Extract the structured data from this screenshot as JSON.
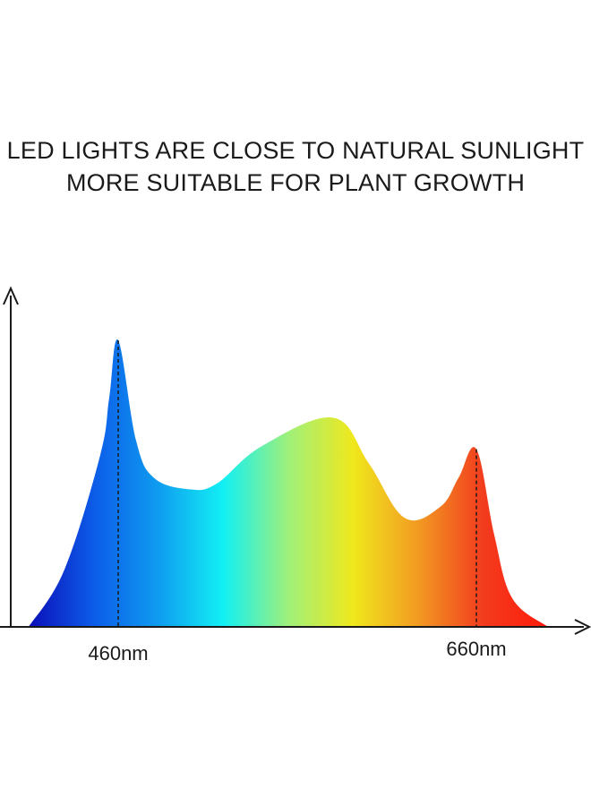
{
  "header": {
    "title_line1": "LED LIGHTS ARE CLOSE TO NATURAL SUNLIGHT",
    "title_line2": "MORE SUITABLE FOR PLANT GROWTH"
  },
  "chart_data": {
    "type": "area",
    "title": "LED LIGHTS ARE CLOSE TO NATURAL SUNLIGHT MORE SUITABLE FOR PLANT GROWTH",
    "xlabel": "",
    "ylabel": "",
    "x_unit": "nm",
    "grid": false,
    "legend": "none",
    "series": [
      {
        "x": [
          410,
          430,
          450,
          455,
          460,
          470,
          480,
          500,
          515,
          540,
          580,
          600,
          620,
          640,
          650,
          660,
          670,
          680,
          700
        ],
        "values": [
          0,
          0.2,
          0.6,
          0.8,
          1.0,
          0.65,
          0.52,
          0.48,
          0.5,
          0.63,
          0.73,
          0.57,
          0.38,
          0.42,
          0.52,
          0.62,
          0.32,
          0.1,
          0
        ]
      }
    ],
    "marked_wavelengths": [
      {
        "value": 460,
        "label": "460nm"
      },
      {
        "value": 660,
        "label": "660nm"
      }
    ],
    "spectrum_colors": [
      "#0b0fb8",
      "#0c5ce8",
      "#0f9cf0",
      "#12f0f4",
      "#9ff07a",
      "#f0e81c",
      "#f29a22",
      "#f23c1e",
      "#ff1a0a"
    ]
  }
}
